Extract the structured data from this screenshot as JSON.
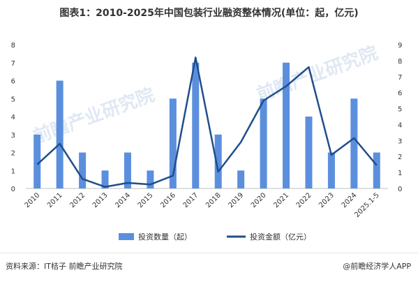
{
  "title": "图表1：2010-2025年中国包装行业融资整体情况(单位：起，亿元)",
  "source": "资料来源：IT桔子 前瞻产业研究院",
  "brand": "@前瞻经济学人APP",
  "watermark": "前瞻产业研究院",
  "colors": {
    "bar": "#5b8fde",
    "line": "#1f4e8c",
    "axis": "#bfbfbf"
  },
  "chart_data": {
    "type": "bar",
    "categories": [
      "2010",
      "2011",
      "2012",
      "2013",
      "2014",
      "2015",
      "2016",
      "2017",
      "2018",
      "2019",
      "2020",
      "2021",
      "2022",
      "2023",
      "2024",
      "2025.1-5"
    ],
    "series": [
      {
        "name": "投资数量（起）",
        "type": "bar",
        "axis": "left",
        "values": [
          3,
          6,
          2,
          1,
          2,
          1,
          5,
          7,
          3,
          1,
          5,
          7,
          4,
          2,
          5,
          2
        ]
      },
      {
        "name": "投资金额（亿元）",
        "type": "line",
        "axis": "right",
        "values": [
          1.5,
          2.8,
          0.6,
          0.1,
          0.35,
          0.25,
          0.8,
          8.2,
          1.05,
          2.9,
          5.5,
          6.4,
          7.6,
          2.1,
          3.15,
          1.45
        ]
      }
    ],
    "ylim_left": [
      0,
      8
    ],
    "ylim_right": [
      0,
      9
    ],
    "yticks_left": [
      "0",
      "1",
      "2",
      "3",
      "4",
      "5",
      "6",
      "7",
      "8"
    ],
    "yticks_right": [
      "0",
      "1",
      "2",
      "3",
      "4",
      "5",
      "6",
      "7",
      "8",
      "9"
    ],
    "legend_position": "bottom"
  }
}
